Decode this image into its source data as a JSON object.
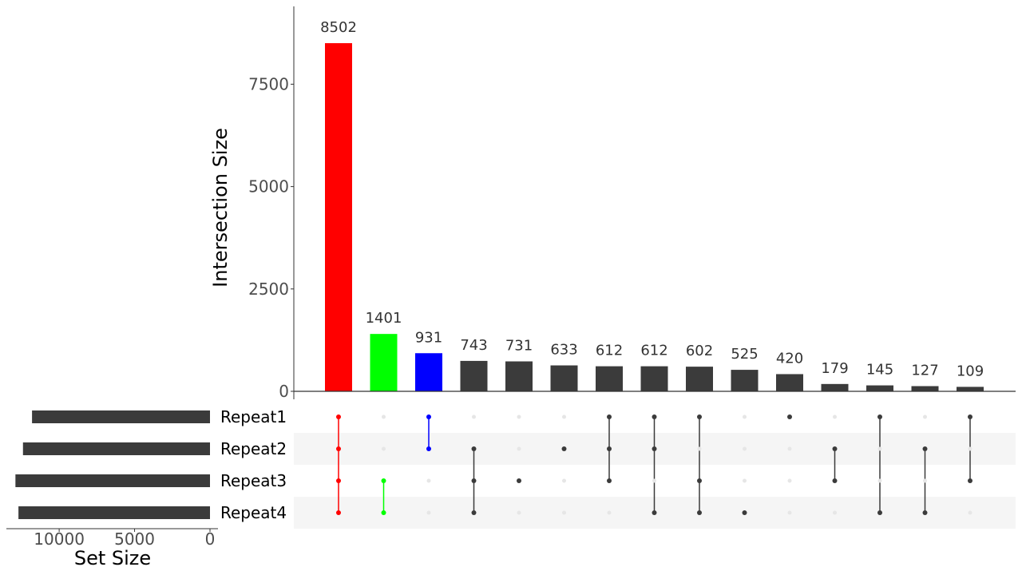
{
  "chart_data": {
    "type": "bar",
    "subtype": "upset",
    "ylabel": "Intersection Size",
    "set_size_label": "Set Size",
    "ylim": [
      0,
      9400
    ],
    "yticks": [
      0,
      2500,
      5000,
      7500
    ],
    "ytick_labels": [
      "0",
      "2500",
      "5000",
      "7500"
    ],
    "sets": [
      {
        "name": "Repeat1",
        "size": 11800
      },
      {
        "name": "Repeat2",
        "size": 12400
      },
      {
        "name": "Repeat3",
        "size": 12900
      },
      {
        "name": "Repeat4",
        "size": 12700
      }
    ],
    "set_size_xlim": [
      13500,
      0
    ],
    "set_size_ticks": [
      10000,
      5000,
      0
    ],
    "set_size_tick_labels": [
      "10000",
      "5000",
      "0"
    ],
    "intersections": [
      {
        "sets": [
          "Repeat1",
          "Repeat2",
          "Repeat3",
          "Repeat4"
        ],
        "value": 8502,
        "label": "8502",
        "color": "#ff0000"
      },
      {
        "sets": [
          "Repeat3",
          "Repeat4"
        ],
        "value": 1401,
        "label": "1401",
        "color": "#00ff00"
      },
      {
        "sets": [
          "Repeat1",
          "Repeat2"
        ],
        "value": 931,
        "label": "931",
        "color": "#0000ff"
      },
      {
        "sets": [
          "Repeat2",
          "Repeat3",
          "Repeat4"
        ],
        "value": 743,
        "label": "743",
        "color": "#3b3b3b"
      },
      {
        "sets": [
          "Repeat3"
        ],
        "value": 731,
        "label": "731",
        "color": "#3b3b3b"
      },
      {
        "sets": [
          "Repeat2"
        ],
        "value": 633,
        "label": "633",
        "color": "#3b3b3b"
      },
      {
        "sets": [
          "Repeat1",
          "Repeat2",
          "Repeat3"
        ],
        "value": 612,
        "label": "612",
        "color": "#3b3b3b"
      },
      {
        "sets": [
          "Repeat1",
          "Repeat2",
          "Repeat4"
        ],
        "value": 612,
        "label": "612",
        "color": "#3b3b3b"
      },
      {
        "sets": [
          "Repeat1",
          "Repeat3",
          "Repeat4"
        ],
        "value": 602,
        "label": "602",
        "color": "#3b3b3b"
      },
      {
        "sets": [
          "Repeat4"
        ],
        "value": 525,
        "label": "525",
        "color": "#3b3b3b"
      },
      {
        "sets": [
          "Repeat1"
        ],
        "value": 420,
        "label": "420",
        "color": "#3b3b3b"
      },
      {
        "sets": [
          "Repeat2",
          "Repeat3"
        ],
        "value": 179,
        "label": "179",
        "color": "#3b3b3b"
      },
      {
        "sets": [
          "Repeat1",
          "Repeat4"
        ],
        "value": 145,
        "label": "145",
        "color": "#3b3b3b"
      },
      {
        "sets": [
          "Repeat2",
          "Repeat4"
        ],
        "value": 127,
        "label": "127",
        "color": "#3b3b3b"
      },
      {
        "sets": [
          "Repeat1",
          "Repeat3"
        ],
        "value": 109,
        "label": "109",
        "color": "#3b3b3b"
      }
    ],
    "colors": {
      "default_bar": "#3b3b3b",
      "inactive_dot": "#e6e6e6",
      "stripe": "#f5f5f5",
      "axis": "#333333"
    },
    "grid": false,
    "legend": "none"
  }
}
